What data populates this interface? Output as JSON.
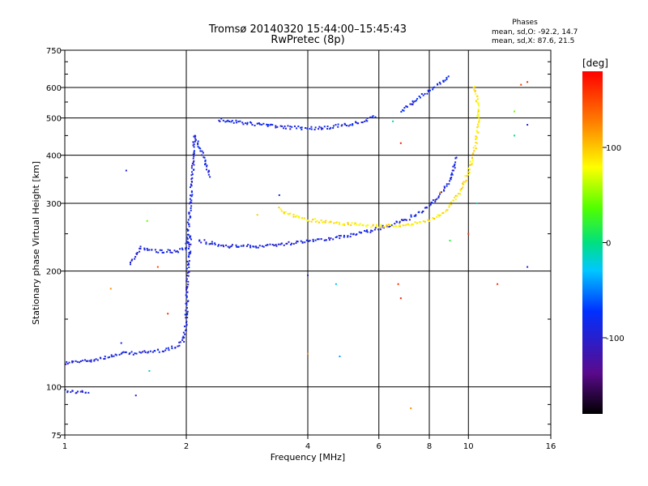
{
  "chart_data": {
    "type": "scatter",
    "title": "Tromsø 20140320 15:44:00–15:45:43",
    "subtitle": "RwPretec (8p)",
    "xlabel": "Frequency [MHz]",
    "ylabel": "Stationary phase Virtual Height [km]",
    "x_scale": "log",
    "y_scale": "log",
    "xlim": [
      1,
      16
    ],
    "ylim": [
      75,
      750
    ],
    "xticks": [
      1,
      2,
      4,
      6,
      8,
      10,
      16
    ],
    "yticks": [
      75,
      100,
      200,
      300,
      400,
      500,
      600,
      750
    ],
    "grid": true,
    "phase_stats": {
      "title": "Phases",
      "line_O": "mean, sd,O: -92.2, 14.7",
      "line_X": "mean, sd,X:  87.6, 21.5"
    },
    "colorbar": {
      "label": "[deg]",
      "range": [
        -180,
        180
      ],
      "ticks": [
        -100,
        0,
        100
      ],
      "colormap": "rainbow"
    },
    "traces": [
      {
        "kind": "O-mode low E region",
        "phase": -95,
        "x": [
          1.0,
          1.05,
          1.1,
          1.15
        ],
        "y": [
          98,
          97,
          97,
          96
        ]
      },
      {
        "kind": "O-mode E region",
        "phase": -92,
        "x": [
          1.0,
          1.2,
          1.4,
          1.6,
          1.8,
          1.9,
          1.97,
          2.0,
          2.02,
          2.05
        ],
        "y": [
          115,
          118,
          122,
          123,
          125,
          128,
          132,
          150,
          200,
          250
        ]
      },
      {
        "kind": "O-mode sporadic cusp",
        "phase": -90,
        "x": [
          1.45,
          1.55,
          1.7,
          1.9,
          2.0,
          2.05,
          2.1,
          2.2,
          2.3
        ],
        "y": [
          210,
          230,
          225,
          225,
          230,
          300,
          450,
          400,
          350
        ]
      },
      {
        "kind": "O-mode F2 lower trace",
        "phase": -92,
        "x": [
          2.15,
          2.5,
          3.0,
          3.5,
          4.0,
          4.5,
          5.0,
          5.5,
          6.0,
          6.5,
          7.0,
          7.5,
          8.0,
          8.5,
          9.0,
          9.4
        ],
        "y": [
          240,
          232,
          232,
          235,
          240,
          243,
          246,
          252,
          258,
          264,
          272,
          282,
          295,
          315,
          345,
          400
        ]
      },
      {
        "kind": "O-mode upper band",
        "phase": -88,
        "x": [
          2.4,
          2.8,
          3.2,
          3.6,
          4.0,
          4.5,
          5.0,
          5.5,
          5.9
        ],
        "y": [
          495,
          485,
          478,
          472,
          470,
          472,
          480,
          490,
          505
        ]
      },
      {
        "kind": "X-mode F2 trace",
        "phase": 88,
        "x": [
          3.4,
          3.7,
          4.0,
          4.5,
          5.0,
          5.5,
          6.0,
          6.5,
          7.0,
          7.5,
          8.0,
          8.5,
          9.0,
          9.5,
          10.0,
          10.3,
          10.5,
          10.6,
          10.5,
          10.3
        ],
        "y": [
          290,
          278,
          272,
          268,
          265,
          263,
          262,
          262,
          264,
          266,
          270,
          280,
          295,
          320,
          360,
          400,
          450,
          500,
          560,
          610
        ]
      },
      {
        "kind": "O-mode cusp top",
        "phase": -85,
        "x": [
          6.8,
          7.3,
          7.8,
          8.2,
          8.6,
          9.0
        ],
        "y": [
          520,
          550,
          580,
          600,
          620,
          640
        ]
      }
    ],
    "isolated_points": [
      {
        "x": 1.42,
        "y": 365,
        "phase": -95
      },
      {
        "x": 1.38,
        "y": 130,
        "phase": -90
      },
      {
        "x": 1.6,
        "y": 270,
        "phase": 40
      },
      {
        "x": 1.62,
        "y": 110,
        "phase": -20
      },
      {
        "x": 1.3,
        "y": 180,
        "phase": 120
      },
      {
        "x": 1.7,
        "y": 205,
        "phase": 150
      },
      {
        "x": 1.8,
        "y": 155,
        "phase": 160
      },
      {
        "x": 1.5,
        "y": 95,
        "phase": -100
      },
      {
        "x": 3.0,
        "y": 280,
        "phase": 100
      },
      {
        "x": 3.4,
        "y": 315,
        "phase": -95
      },
      {
        "x": 4.0,
        "y": 195,
        "phase": -95
      },
      {
        "x": 4.0,
        "y": 122,
        "phase": 120
      },
      {
        "x": 4.7,
        "y": 185,
        "phase": -30
      },
      {
        "x": 4.8,
        "y": 120,
        "phase": -40
      },
      {
        "x": 6.7,
        "y": 185,
        "phase": 160
      },
      {
        "x": 6.8,
        "y": 170,
        "phase": 170
      },
      {
        "x": 7.2,
        "y": 88,
        "phase": 120
      },
      {
        "x": 6.8,
        "y": 430,
        "phase": 170
      },
      {
        "x": 6.5,
        "y": 490,
        "phase": -10
      },
      {
        "x": 8.5,
        "y": 320,
        "phase": 110
      },
      {
        "x": 10.5,
        "y": 300,
        "phase": -20
      },
      {
        "x": 10.0,
        "y": 250,
        "phase": 160
      },
      {
        "x": 11.8,
        "y": 185,
        "phase": 160
      },
      {
        "x": 13.5,
        "y": 610,
        "phase": 160
      },
      {
        "x": 14.0,
        "y": 620,
        "phase": 165
      },
      {
        "x": 13.0,
        "y": 520,
        "phase": 40
      },
      {
        "x": 13.0,
        "y": 450,
        "phase": 0
      },
      {
        "x": 14.0,
        "y": 480,
        "phase": -95
      },
      {
        "x": 14.0,
        "y": 205,
        "phase": -95
      },
      {
        "x": 9.0,
        "y": 240,
        "phase": 20
      }
    ]
  }
}
